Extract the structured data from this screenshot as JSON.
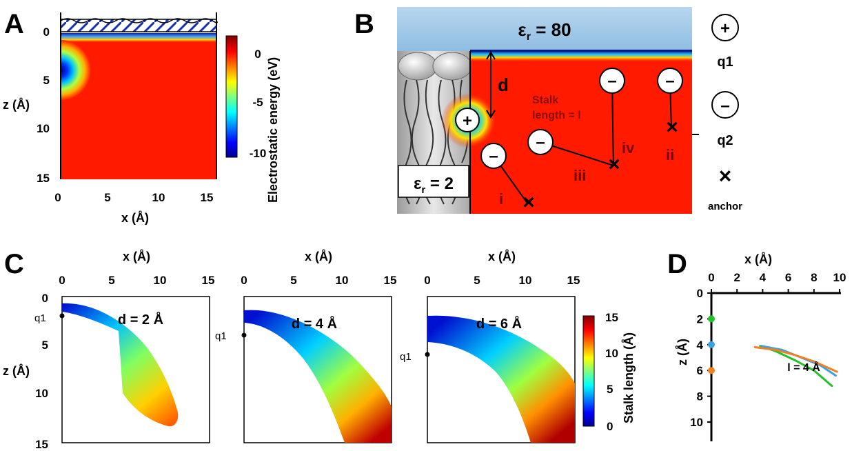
{
  "panels": [
    {
      "label": "A"
    },
    {
      "label": "B"
    },
    {
      "label": "C"
    },
    {
      "label": "D"
    }
  ],
  "panelA": {
    "xlabel": "x (Å)",
    "ylabel": "z (Å)",
    "xticks": [
      "0",
      "5",
      "10",
      "15"
    ],
    "yticks": [
      "0",
      "5",
      "10",
      "15"
    ],
    "colorbar_label": "Electrostatic energy (eV)",
    "colorbar_ticks": [
      "0",
      "-5",
      "-10"
    ]
  },
  "panelB": {
    "water_label": "ε<sub>r</sub> = 80",
    "water_text": "εr = 80",
    "membrane_text": "εr = 2",
    "d_label": "d",
    "stalk_line1": "Stalk",
    "stalk_line2": "length = l",
    "configs": [
      "i",
      "ii",
      "iii",
      "iv"
    ],
    "legend": {
      "q1_symbol": "+",
      "q1_label": "q1",
      "q2_symbol": "–",
      "q2_label": "q2",
      "anchor_symbol": "×",
      "anchor_label": "anchor"
    }
  },
  "panelC": {
    "xlabel": "x (Å)",
    "ylabel": "z (Å)",
    "xticks": [
      "0",
      "5",
      "10",
      "15"
    ],
    "yticks": [
      "0",
      "5",
      "10",
      "15"
    ],
    "charge_label": "q1",
    "subplots": [
      {
        "title": "d = 2 Å",
        "d": 2
      },
      {
        "title": "d = 4 Å",
        "d": 4
      },
      {
        "title": "d = 6 Å",
        "d": 6
      }
    ],
    "colorbar_label": "Stalk length (Å)",
    "colorbar_ticks": [
      "15",
      "10",
      "5",
      "0"
    ]
  },
  "chart_data": {
    "type": "line",
    "title": "",
    "xlabel": "x (Å)",
    "ylabel": "z (Å)",
    "xticks": [
      "0",
      "2",
      "4",
      "6",
      "8",
      "10"
    ],
    "yticks": [
      "0",
      "2",
      "4",
      "6",
      "8",
      "10"
    ],
    "xlim": [
      0,
      10
    ],
    "ylim": [
      0,
      10
    ],
    "annotation": "l = 4 Å",
    "markers": [
      {
        "z": 2,
        "color": "#22c02a"
      },
      {
        "z": 4,
        "color": "#3aa0e6"
      },
      {
        "z": 6,
        "color": "#f08020"
      }
    ],
    "series": [
      {
        "color": "#22c02a",
        "points": [
          [
            3.8,
            4.1
          ],
          [
            5,
            4.5
          ],
          [
            6.5,
            5.2
          ],
          [
            8,
            6.0
          ],
          [
            9.4,
            7.2
          ]
        ]
      },
      {
        "color": "#3aa0e6",
        "points": [
          [
            3.9,
            4.1
          ],
          [
            5.5,
            4.4
          ],
          [
            7,
            5.0
          ],
          [
            8.5,
            5.6
          ],
          [
            9.7,
            6.4
          ]
        ]
      },
      {
        "color": "#f08020",
        "points": [
          [
            3.4,
            4.2
          ],
          [
            5,
            4.4
          ],
          [
            6.5,
            4.8
          ],
          [
            8,
            5.3
          ],
          [
            9.8,
            6.1
          ]
        ]
      }
    ]
  }
}
